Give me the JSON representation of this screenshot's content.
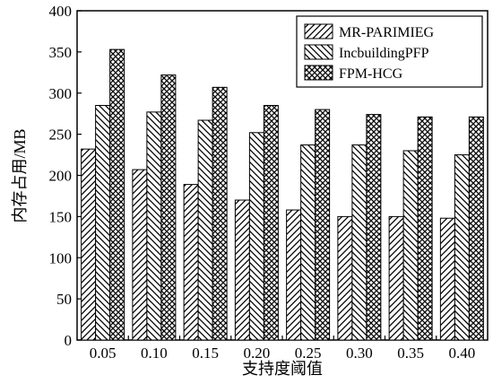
{
  "chart_data": {
    "type": "bar",
    "categories": [
      "0.05",
      "0.10",
      "0.15",
      "0.20",
      "0.25",
      "0.30",
      "0.35",
      "0.40"
    ],
    "series": [
      {
        "name": "MR-PARIMIEG",
        "pattern": "hatch-forward",
        "values": [
          232,
          207,
          189,
          170,
          158,
          150,
          150,
          148
        ]
      },
      {
        "name": "IncbuildingPFP",
        "pattern": "hatch-backward",
        "values": [
          285,
          277,
          267,
          252,
          237,
          237,
          230,
          225
        ]
      },
      {
        "name": "FPM-HCG",
        "pattern": "crosshatch",
        "values": [
          353,
          322,
          307,
          285,
          280,
          274,
          271,
          271
        ]
      }
    ],
    "xlabel": "支持度阈值",
    "ylabel": "内存占用/MB",
    "ylim": [
      0,
      400
    ],
    "yticks": [
      0,
      50,
      100,
      150,
      200,
      250,
      300,
      350,
      400
    ],
    "grid": false,
    "legend_position": "top-right",
    "colors": {
      "stroke": "#000000",
      "background": "#ffffff"
    }
  }
}
